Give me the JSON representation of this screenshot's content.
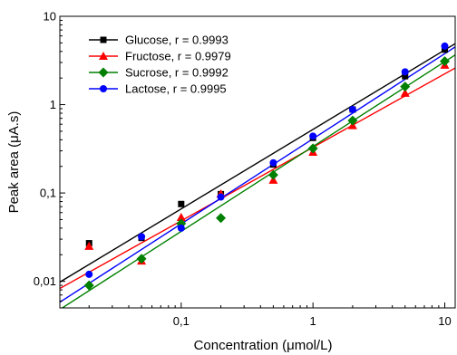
{
  "chart_data": {
    "type": "scatter",
    "xlabel": "Concentration (μmol/L)",
    "ylabel": "Peak area (μA.s)",
    "x_scale": "log",
    "y_scale": "log",
    "xlim": [
      0.012,
      12
    ],
    "ylim": [
      0.005,
      10
    ],
    "x_ticks": [
      {
        "value": 0.1,
        "label": "0,1"
      },
      {
        "value": 1,
        "label": "1"
      },
      {
        "value": 10,
        "label": "10"
      }
    ],
    "y_ticks": [
      {
        "value": 0.01,
        "label": "0,01"
      },
      {
        "value": 0.1,
        "label": "0,1"
      },
      {
        "value": 1,
        "label": "1"
      },
      {
        "value": 10,
        "label": "10"
      }
    ],
    "legend_position": "top-left",
    "grid": false,
    "series": [
      {
        "name": "Glucose, r = 0.9993",
        "color": "#000000",
        "marker": "square",
        "points": [
          [
            0.02,
            0.027
          ],
          [
            0.05,
            0.031
          ],
          [
            0.1,
            0.075
          ],
          [
            0.2,
            0.097
          ],
          [
            0.5,
            0.21
          ],
          [
            1,
            0.42
          ],
          [
            2,
            0.88
          ],
          [
            5,
            2.1
          ],
          [
            10,
            4.2
          ]
        ],
        "fit": [
          [
            0.012,
            0.0098
          ],
          [
            12,
            4.9
          ]
        ]
      },
      {
        "name": "Fructose, r = 0.9979",
        "color": "#ff0000",
        "marker": "triangle",
        "points": [
          [
            0.02,
            0.025
          ],
          [
            0.05,
            0.017
          ],
          [
            0.1,
            0.053
          ],
          [
            0.2,
            0.098
          ],
          [
            0.5,
            0.14
          ],
          [
            1,
            0.29
          ],
          [
            2,
            0.58
          ],
          [
            5,
            1.35
          ],
          [
            10,
            2.8
          ]
        ],
        "fit": [
          [
            0.012,
            0.0083
          ],
          [
            12,
            2.6
          ]
        ]
      },
      {
        "name": "Sucrose, r = 0.9992",
        "color": "#008000",
        "marker": "diamond",
        "points": [
          [
            0.02,
            0.009
          ],
          [
            0.05,
            0.018
          ],
          [
            0.1,
            0.045
          ],
          [
            0.2,
            0.052
          ],
          [
            0.5,
            0.16
          ],
          [
            1,
            0.32
          ],
          [
            2,
            0.66
          ],
          [
            5,
            1.6
          ],
          [
            10,
            3.1
          ]
        ],
        "fit": [
          [
            0.012,
            0.0048
          ],
          [
            12,
            3.65
          ]
        ]
      },
      {
        "name": "Lactose, r = 0.9995",
        "color": "#0000ff",
        "marker": "circle",
        "points": [
          [
            0.02,
            0.012
          ],
          [
            0.05,
            0.032
          ],
          [
            0.1,
            0.04
          ],
          [
            0.2,
            0.09
          ],
          [
            0.5,
            0.22
          ],
          [
            1,
            0.44
          ],
          [
            2,
            0.88
          ],
          [
            5,
            2.35
          ],
          [
            10,
            4.6
          ]
        ],
        "fit": [
          [
            0.012,
            0.0058
          ],
          [
            12,
            4.5
          ]
        ]
      }
    ]
  }
}
